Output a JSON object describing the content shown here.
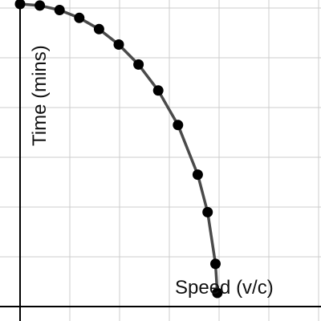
{
  "chart_data": {
    "type": "scatter",
    "title": "",
    "xlabel": "Speed (v/c)",
    "ylabel": "Time (mins)",
    "grid": true,
    "colors": {
      "line": "#4a4a4a",
      "points": "#000000",
      "grid": "#cccccc",
      "axis": "#000000"
    },
    "series": [
      {
        "x": [
          0.0,
          0.1,
          0.2,
          0.3,
          0.4,
          0.5,
          0.6,
          0.7,
          0.8,
          0.9,
          0.95,
          0.99,
          0.999
        ],
        "y": [
          1.0,
          0.995,
          0.98,
          0.954,
          0.917,
          0.866,
          0.8,
          0.714,
          0.6,
          0.436,
          0.312,
          0.141,
          0.045
        ]
      }
    ]
  }
}
